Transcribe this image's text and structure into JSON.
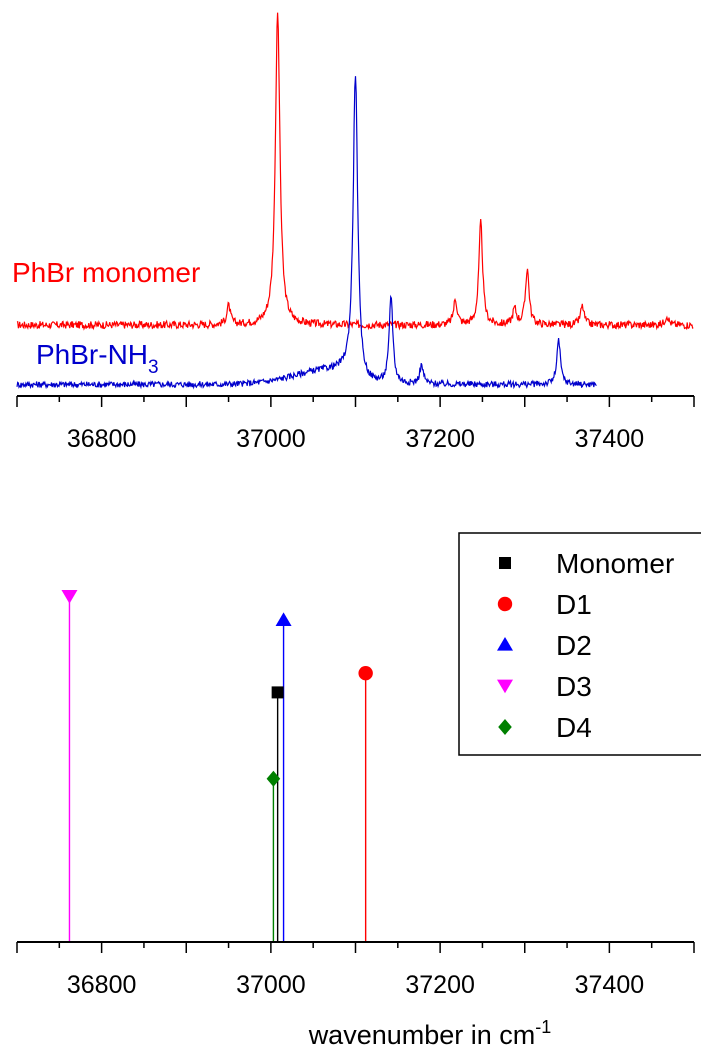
{
  "chart_data": [
    {
      "type": "line",
      "title": "",
      "xlabel": "",
      "ylabel": "",
      "xlim": [
        36700,
        37500
      ],
      "xticks": [
        36800,
        37000,
        37200,
        37400
      ],
      "y_axis_visible": false,
      "grid": false,
      "series": [
        {
          "name": "PhBr monomer",
          "label_text": "PhBr monomer",
          "color": "#ff0000",
          "x_range": [
            36700,
            37500
          ],
          "baseline": 0.0,
          "noise": 0.012,
          "peaks": [
            {
              "x": 36950,
              "height": 0.06
            },
            {
              "x": 37008,
              "height": 1.0
            },
            {
              "x": 37218,
              "height": 0.08
            },
            {
              "x": 37248,
              "height": 0.33
            },
            {
              "x": 37288,
              "height": 0.05
            },
            {
              "x": 37303,
              "height": 0.18
            },
            {
              "x": 37368,
              "height": 0.06
            },
            {
              "x": 37468,
              "height": 0.03
            }
          ]
        },
        {
          "name": "PhBr-NH3",
          "label_text": "PhBr-NH",
          "label_subscript": "3",
          "color": "#0000cc",
          "x_range": [
            36700,
            37385
          ],
          "baseline": -0.19,
          "noise": 0.01,
          "peaks": [
            {
              "x": 37100,
              "height": 0.98
            },
            {
              "x": 37142,
              "height": 0.28
            },
            {
              "x": 37178,
              "height": 0.06
            },
            {
              "x": 37340,
              "height": 0.14
            }
          ]
        }
      ]
    },
    {
      "type": "stem",
      "title": "",
      "xlabel": "wavenumber in cm",
      "xlabel_superscript": "-1",
      "ylabel": "",
      "xlim": [
        36700,
        37500
      ],
      "ylim": [
        0,
        1
      ],
      "xticks": [
        36800,
        37000,
        37200,
        37400
      ],
      "y_axis_visible": false,
      "grid": false,
      "legend_position": "top-right",
      "series": [
        {
          "name": "Monomer",
          "marker": "square",
          "color": "#000000",
          "points": [
            {
              "x": 37008,
              "y": 0.52
            }
          ]
        },
        {
          "name": "D1",
          "marker": "circle",
          "color": "#ff0000",
          "points": [
            {
              "x": 37112,
              "y": 0.56
            }
          ]
        },
        {
          "name": "D2",
          "marker": "triangle-up",
          "color": "#0000ff",
          "points": [
            {
              "x": 37015,
              "y": 0.67
            }
          ]
        },
        {
          "name": "D3",
          "marker": "triangle-down",
          "color": "#ff00ff",
          "points": [
            {
              "x": 36762,
              "y": 0.72
            }
          ]
        },
        {
          "name": "D4",
          "marker": "diamond",
          "color": "#008000",
          "points": [
            {
              "x": 37003,
              "y": 0.34
            }
          ]
        }
      ]
    }
  ]
}
